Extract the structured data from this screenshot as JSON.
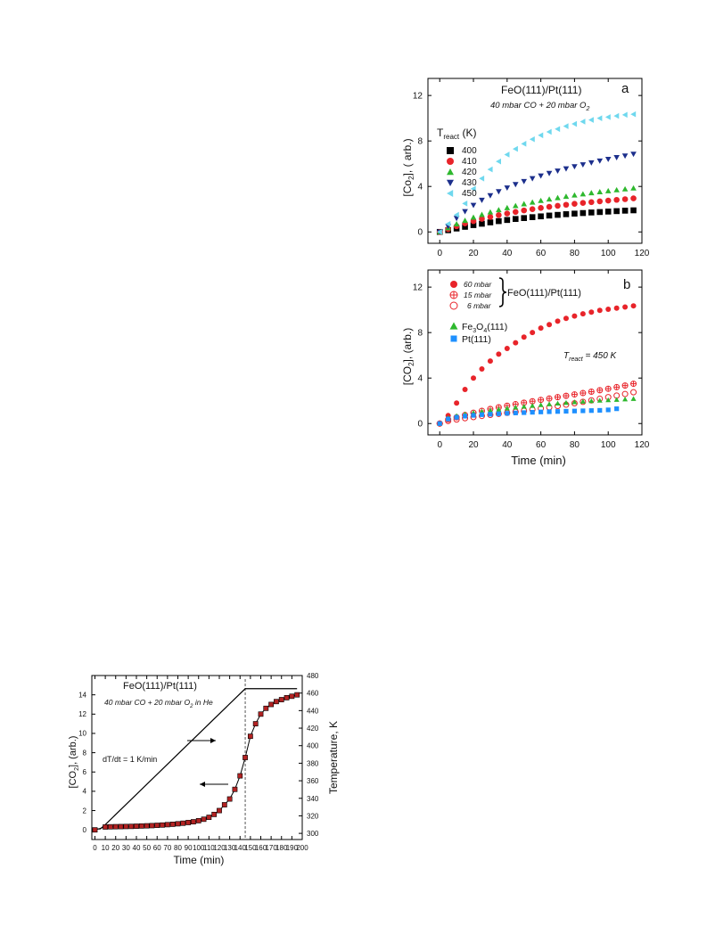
{
  "chart_data": [
    {
      "id": "a",
      "type": "scatter",
      "panel_label": "a",
      "title": "FeO(111)/Pt(111)",
      "subtitle": "40 mbar CO + 20 mbar O",
      "subtitle_sub": "2",
      "xlabel": "",
      "ylabel": "[Co",
      "ylabel_sub": "2",
      "ylabel_tail": "], ( arb.)",
      "xlim": [
        -7,
        120
      ],
      "ylim": [
        -1,
        13.5
      ],
      "xticks": [
        "0",
        "20",
        "40",
        "60",
        "80",
        "100",
        "120"
      ],
      "yticks": [
        "0",
        "4",
        "8",
        "12"
      ],
      "legend_title": "T",
      "legend_title_sub": "react",
      "legend_title_tail": " (K)",
      "legend_position": "upper-left",
      "series": [
        {
          "name": "400",
          "marker": "square",
          "color": "#000000",
          "x": [
            0,
            5,
            10,
            15,
            20,
            25,
            30,
            35,
            40,
            45,
            50,
            55,
            60,
            65,
            70,
            75,
            80,
            85,
            90,
            95,
            100,
            105,
            110,
            115
          ],
          "y": [
            0,
            0.15,
            0.3,
            0.45,
            0.6,
            0.72,
            0.84,
            0.95,
            1.05,
            1.14,
            1.22,
            1.3,
            1.37,
            1.44,
            1.5,
            1.56,
            1.61,
            1.66,
            1.71,
            1.75,
            1.79,
            1.83,
            1.87,
            1.9
          ]
        },
        {
          "name": "410",
          "marker": "circle",
          "color": "#e8242a",
          "x": [
            0,
            5,
            10,
            15,
            20,
            25,
            30,
            35,
            40,
            45,
            50,
            55,
            60,
            65,
            70,
            75,
            80,
            85,
            90,
            95,
            100,
            105,
            110,
            115
          ],
          "y": [
            0,
            0.25,
            0.5,
            0.75,
            0.95,
            1.15,
            1.32,
            1.48,
            1.62,
            1.76,
            1.89,
            2.0,
            2.11,
            2.21,
            2.3,
            2.39,
            2.47,
            2.55,
            2.62,
            2.69,
            2.76,
            2.82,
            2.88,
            2.95
          ]
        },
        {
          "name": "420",
          "marker": "triangle-up",
          "color": "#2eb82e",
          "x": [
            0,
            5,
            10,
            15,
            20,
            25,
            30,
            35,
            40,
            45,
            50,
            55,
            60,
            65,
            70,
            75,
            80,
            85,
            90,
            95,
            100,
            105,
            110,
            115
          ],
          "y": [
            0,
            0.35,
            0.7,
            1.0,
            1.28,
            1.52,
            1.74,
            1.94,
            2.12,
            2.3,
            2.46,
            2.61,
            2.75,
            2.88,
            3.0,
            3.12,
            3.23,
            3.33,
            3.43,
            3.52,
            3.61,
            3.69,
            3.77,
            3.85
          ]
        },
        {
          "name": "430",
          "marker": "triangle-down",
          "color": "#1c2f8c",
          "x": [
            0,
            5,
            10,
            15,
            20,
            25,
            30,
            35,
            40,
            45,
            50,
            55,
            60,
            65,
            70,
            75,
            80,
            85,
            90,
            95,
            100,
            105,
            110,
            115
          ],
          "y": [
            0,
            0.5,
            1.2,
            1.8,
            2.35,
            2.8,
            3.2,
            3.55,
            3.88,
            4.18,
            4.45,
            4.7,
            4.94,
            5.16,
            5.37,
            5.56,
            5.75,
            5.92,
            6.09,
            6.25,
            6.4,
            6.55,
            6.69,
            6.85
          ]
        },
        {
          "name": "450",
          "marker": "triangle-left",
          "color": "#6fd8ee",
          "x": [
            0,
            5,
            10,
            15,
            20,
            25,
            30,
            35,
            40,
            45,
            50,
            55,
            60,
            65,
            70,
            75,
            80,
            85,
            90,
            95,
            100,
            105,
            110,
            115
          ],
          "y": [
            0,
            0.7,
            1.5,
            2.5,
            3.8,
            4.7,
            5.5,
            6.2,
            6.8,
            7.3,
            7.75,
            8.15,
            8.5,
            8.8,
            9.05,
            9.3,
            9.5,
            9.7,
            9.85,
            10.0,
            10.1,
            10.2,
            10.3,
            10.35
          ]
        }
      ]
    },
    {
      "id": "b",
      "type": "scatter",
      "panel_label": "b",
      "xlabel": "Time (min)",
      "ylabel": "[CO",
      "ylabel_sub": "2",
      "ylabel_tail": "], (arb.)",
      "xlim": [
        -7,
        120
      ],
      "ylim": [
        -1,
        13.5
      ],
      "xticks": [
        "0",
        "20",
        "40",
        "60",
        "80",
        "100",
        "120"
      ],
      "yticks": [
        "0",
        "4",
        "8",
        "12"
      ],
      "annotation": "T",
      "annotation_sub": "react",
      "annotation_tail": " = 450 K",
      "group_label": "FeO(111)/Pt(111)",
      "legend_position": "upper-left",
      "series": [
        {
          "name": "60 mbar",
          "marker": "circle",
          "color": "#e8242a",
          "x": [
            0,
            5,
            10,
            15,
            20,
            25,
            30,
            35,
            40,
            45,
            50,
            55,
            60,
            65,
            70,
            75,
            80,
            85,
            90,
            95,
            100,
            105,
            110,
            115
          ],
          "y": [
            0,
            0.7,
            1.8,
            3.0,
            4.0,
            4.8,
            5.5,
            6.1,
            6.6,
            7.1,
            7.6,
            8.0,
            8.4,
            8.7,
            9.0,
            9.25,
            9.45,
            9.65,
            9.8,
            9.95,
            10.05,
            10.15,
            10.25,
            10.35
          ]
        },
        {
          "name": "15 mbar",
          "marker": "circle-cross",
          "color": "#e8242a",
          "x": [
            0,
            5,
            10,
            15,
            20,
            25,
            30,
            35,
            40,
            45,
            50,
            55,
            60,
            65,
            70,
            75,
            80,
            85,
            90,
            95,
            100,
            105,
            110,
            115
          ],
          "y": [
            0,
            0.35,
            0.55,
            0.75,
            0.95,
            1.12,
            1.28,
            1.43,
            1.57,
            1.7,
            1.83,
            1.96,
            2.08,
            2.2,
            2.32,
            2.44,
            2.56,
            2.68,
            2.8,
            2.93,
            3.06,
            3.2,
            3.34,
            3.5
          ]
        },
        {
          "name": "6 mbar",
          "marker": "circle-open",
          "color": "#e8242a",
          "x": [
            0,
            5,
            10,
            15,
            20,
            25,
            30,
            35,
            40,
            45,
            50,
            55,
            60,
            65,
            70,
            75,
            80,
            85,
            90,
            95,
            100,
            105,
            110,
            115
          ],
          "y": [
            0,
            0.22,
            0.35,
            0.47,
            0.57,
            0.67,
            0.76,
            0.85,
            0.94,
            1.03,
            1.12,
            1.22,
            1.32,
            1.43,
            1.54,
            1.66,
            1.78,
            1.91,
            2.04,
            2.18,
            2.32,
            2.46,
            2.6,
            2.75
          ]
        },
        {
          "name": "Fe",
          "name_sub": "3",
          "name_mid": "O",
          "name_sub2": "4",
          "name_tail": "(111)",
          "marker": "triangle-up",
          "color": "#2eb82e",
          "x": [
            0,
            5,
            10,
            15,
            20,
            25,
            30,
            35,
            40,
            45,
            50,
            55,
            60,
            65,
            70,
            75,
            80,
            85,
            90,
            95,
            100,
            105,
            110,
            115
          ],
          "y": [
            0,
            0.5,
            0.68,
            0.82,
            0.95,
            1.06,
            1.16,
            1.25,
            1.34,
            1.42,
            1.5,
            1.57,
            1.64,
            1.71,
            1.77,
            1.83,
            1.89,
            1.94,
            1.99,
            2.03,
            2.07,
            2.1,
            2.14,
            2.18
          ]
        },
        {
          "name": "Pt(111)",
          "marker": "square",
          "color": "#1e90ff",
          "x": [
            0,
            5,
            10,
            15,
            20,
            25,
            30,
            35,
            40,
            45,
            50,
            55,
            60,
            65,
            70,
            75,
            80,
            85,
            90,
            95,
            100,
            105
          ],
          "y": [
            0,
            0.4,
            0.55,
            0.65,
            0.72,
            0.78,
            0.82,
            0.86,
            0.9,
            0.93,
            0.96,
            0.99,
            1.02,
            1.04,
            1.06,
            1.08,
            1.1,
            1.12,
            1.14,
            1.16,
            1.2,
            1.3
          ]
        }
      ]
    },
    {
      "id": "c",
      "type": "line",
      "title": "FeO(111)/Pt(111)",
      "subtitle": "40 mbar CO + 20 mbar O",
      "subtitle_sub": "2",
      "subtitle_tail": " in He",
      "xlabel": "Time (min)",
      "ylabel": "[CO",
      "ylabel_sub": "2",
      "ylabel_tail": "], (arb.)",
      "y2label": "Temperature, K",
      "annotation": "dT/dt = 1 K/min",
      "xlim": [
        -3,
        200
      ],
      "ylim": [
        -1,
        16
      ],
      "y2lim": [
        293,
        480
      ],
      "xticks": [
        "0",
        "10",
        "20",
        "30",
        "40",
        "50",
        "60",
        "70",
        "80",
        "90",
        "100",
        "110",
        "120",
        "130",
        "140",
        "150",
        "160",
        "170",
        "180",
        "190",
        "200"
      ],
      "yticks": [
        "0",
        "2",
        "4",
        "6",
        "8",
        "10",
        "12",
        "14"
      ],
      "y2ticks": [
        "300",
        "320",
        "340",
        "360",
        "380",
        "400",
        "420",
        "440",
        "460",
        "480"
      ],
      "vline_x": 145,
      "series": [
        {
          "name": "",
          "axis": "left",
          "marker": "square",
          "color": "#b22222",
          "x": [
            0,
            10,
            15,
            20,
            25,
            30,
            35,
            40,
            45,
            50,
            55,
            60,
            65,
            70,
            75,
            80,
            85,
            90,
            95,
            100,
            105,
            110,
            115,
            120,
            125,
            130,
            135,
            140,
            145,
            150,
            155,
            160,
            165,
            170,
            175,
            180,
            185,
            190,
            195
          ],
          "y": [
            0,
            0.3,
            0.32,
            0.33,
            0.34,
            0.35,
            0.36,
            0.38,
            0.4,
            0.42,
            0.44,
            0.47,
            0.5,
            0.54,
            0.58,
            0.63,
            0.69,
            0.76,
            0.84,
            0.95,
            1.1,
            1.3,
            1.6,
            2.0,
            2.6,
            3.2,
            4.2,
            5.6,
            7.5,
            9.7,
            11.0,
            12.0,
            12.6,
            13.0,
            13.3,
            13.5,
            13.7,
            13.85,
            14.0
          ]
        },
        {
          "name": "",
          "axis": "right",
          "marker": "none",
          "color": "#000000",
          "x": [
            0,
            5,
            10,
            145,
            195
          ],
          "y": [
            305,
            305,
            310,
            465,
            465
          ]
        }
      ]
    }
  ]
}
